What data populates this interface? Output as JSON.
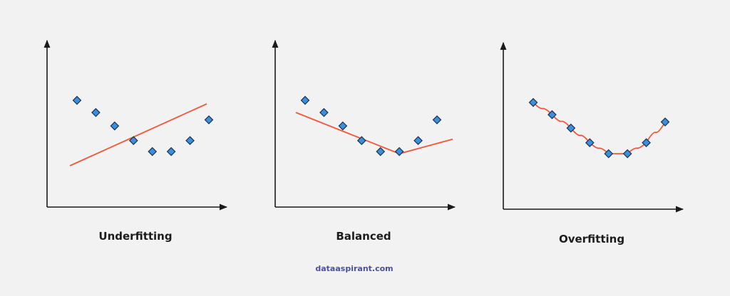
{
  "panels": [
    {
      "id": "underfitting",
      "title": "Underfitting",
      "fit": "underfit",
      "points": [
        {
          "x": 1,
          "y": 9.5
        },
        {
          "x": 2,
          "y": 8.5
        },
        {
          "x": 3,
          "y": 7.4
        },
        {
          "x": 4,
          "y": 6.2
        },
        {
          "x": 5,
          "y": 5.3
        },
        {
          "x": 6,
          "y": 5.3
        },
        {
          "x": 7,
          "y": 6.2
        },
        {
          "x": 8,
          "y": 7.9
        }
      ]
    },
    {
      "id": "balanced",
      "title": "Balanced",
      "fit": "balanced",
      "points": [
        {
          "x": 1,
          "y": 9.5
        },
        {
          "x": 2,
          "y": 8.5
        },
        {
          "x": 3,
          "y": 7.4
        },
        {
          "x": 4,
          "y": 6.2
        },
        {
          "x": 5,
          "y": 5.3
        },
        {
          "x": 6,
          "y": 5.3
        },
        {
          "x": 7,
          "y": 6.2
        },
        {
          "x": 8,
          "y": 7.9
        }
      ]
    },
    {
      "id": "overfitting",
      "title": "Overfitting",
      "fit": "overfit",
      "points": [
        {
          "x": 1,
          "y": 9.5
        },
        {
          "x": 2,
          "y": 8.5
        },
        {
          "x": 3,
          "y": 7.4
        },
        {
          "x": 4,
          "y": 6.2
        },
        {
          "x": 5,
          "y": 5.3
        },
        {
          "x": 6,
          "y": 5.3
        },
        {
          "x": 7,
          "y": 6.2
        },
        {
          "x": 8,
          "y": 7.9
        }
      ]
    }
  ],
  "footer": {
    "credit": "dataaspirant.com"
  },
  "colors": {
    "background": "#f2f2f2",
    "axis": "#1a1a1a",
    "marker_fill": "#3c8fdc",
    "marker_stroke": "#16324f",
    "fit_line": "#f0573a",
    "title_text": "#1c1c1c",
    "credit_text": "#4a4fa6"
  }
}
